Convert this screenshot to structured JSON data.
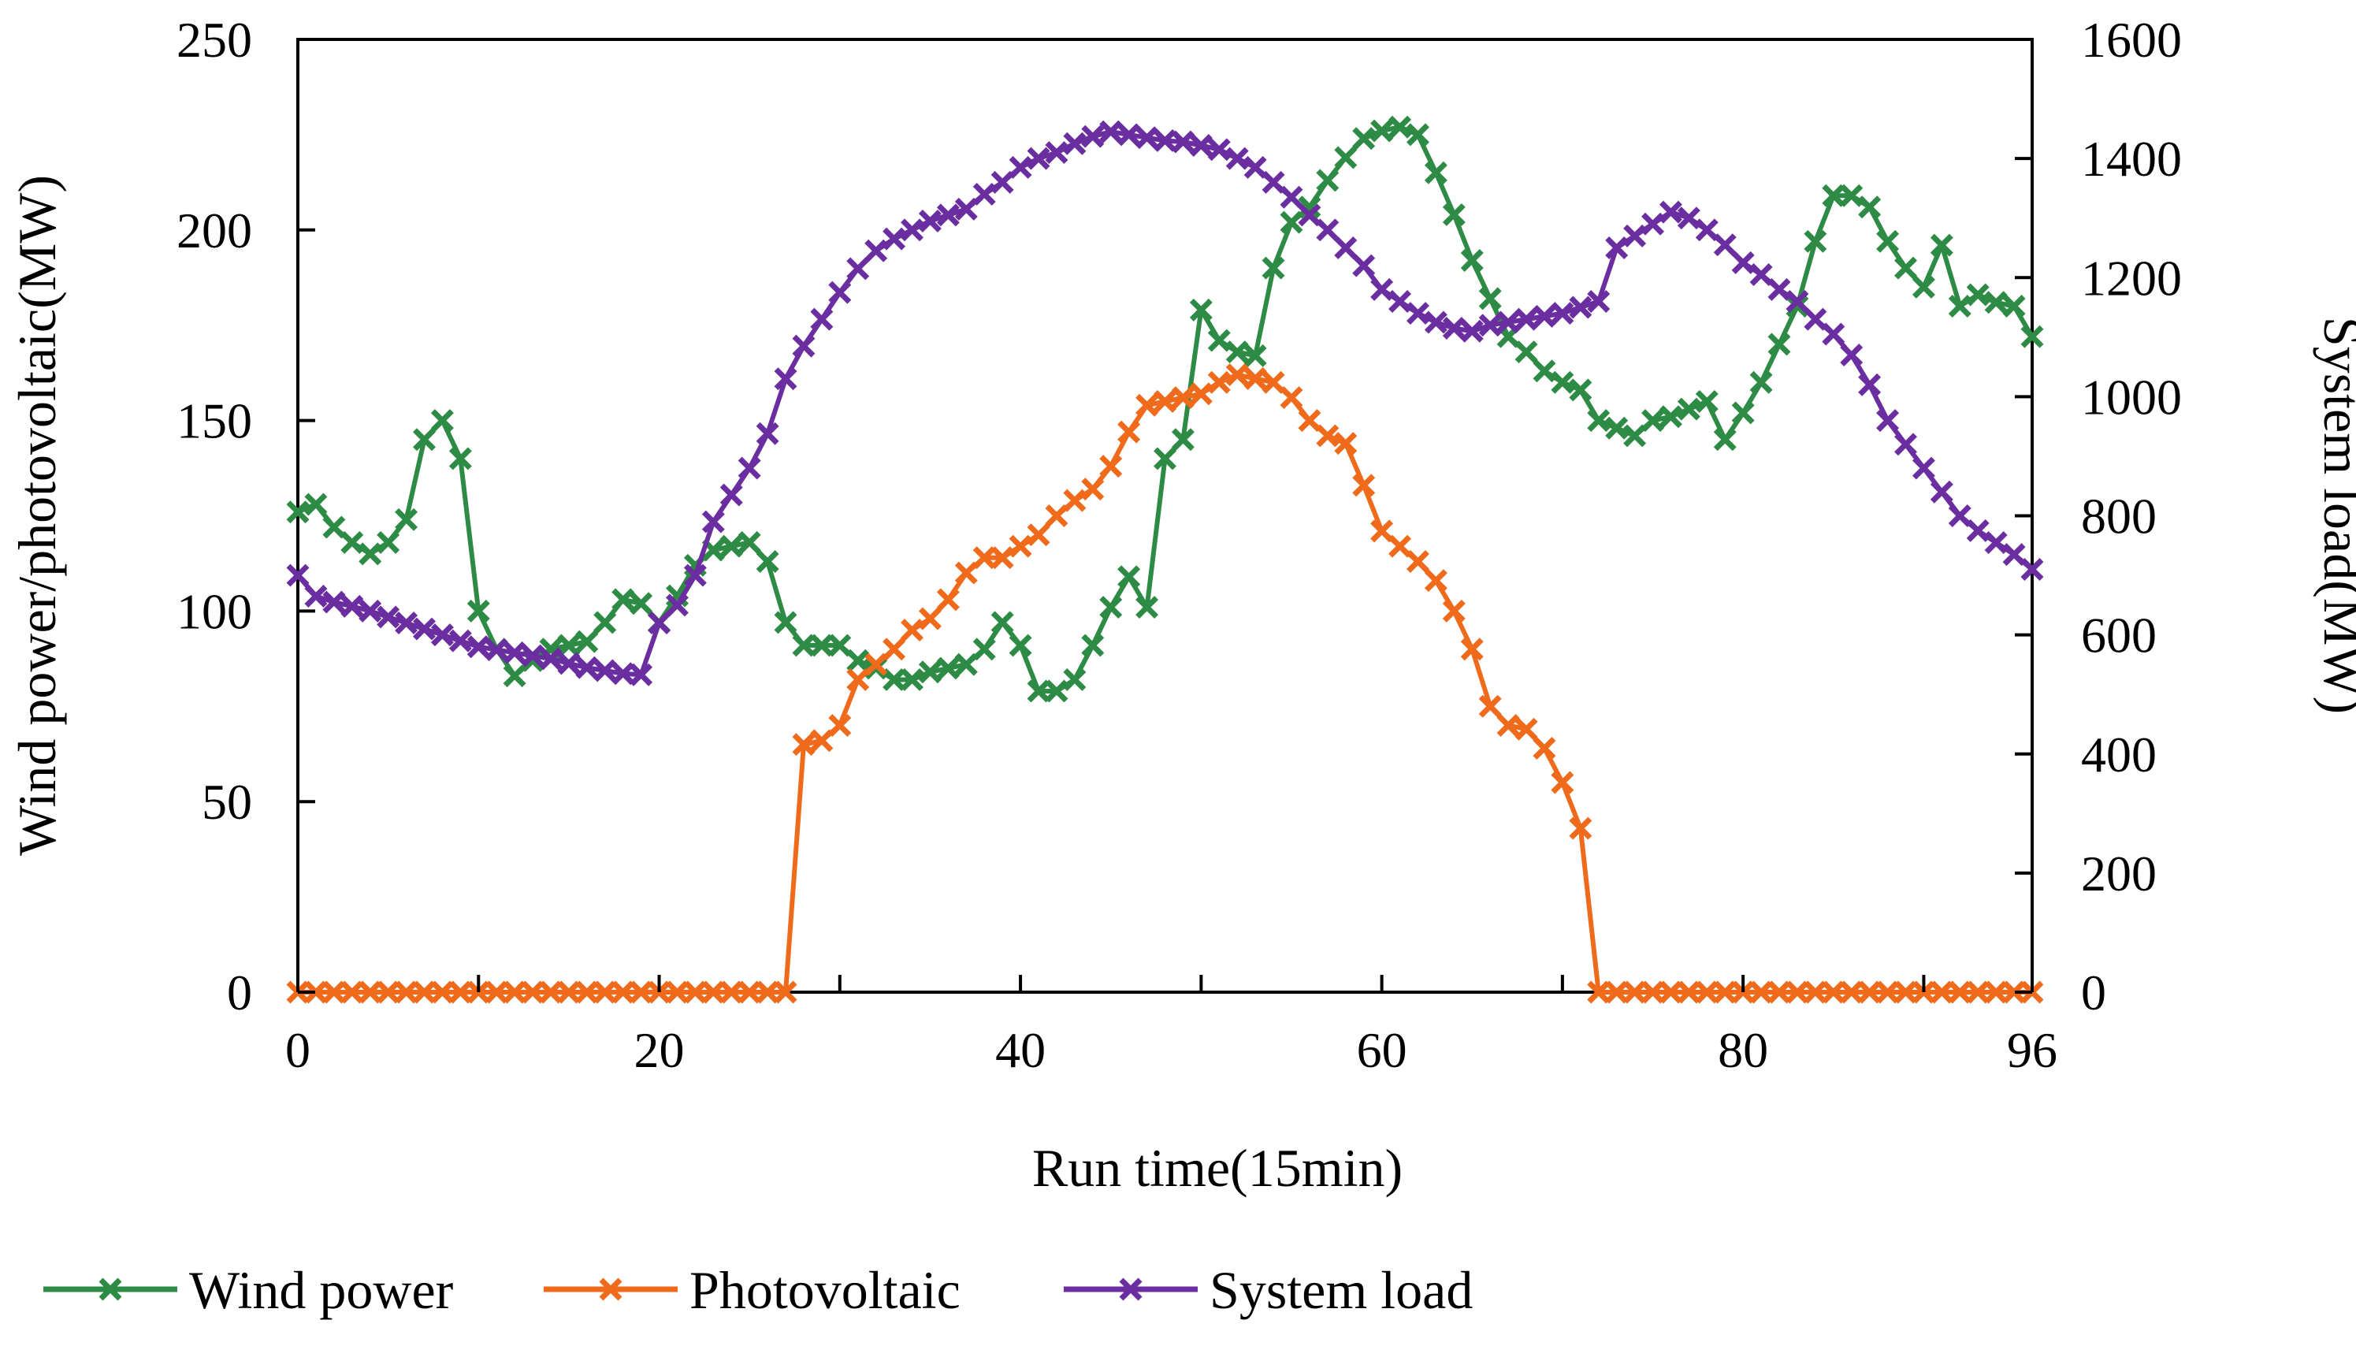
{
  "chart_data": {
    "type": "line",
    "title": "",
    "xlabel": "Run time(15min)",
    "ylabel": "Wind power/photovoltaic(MW)",
    "y2label": "System load(MW)",
    "xlim": [
      0,
      96
    ],
    "ylim": [
      0,
      250
    ],
    "y2lim": [
      0,
      1600
    ],
    "xticks": [
      0,
      20,
      40,
      60,
      80,
      96
    ],
    "yticks": [
      0,
      50,
      100,
      150,
      200,
      250
    ],
    "y2ticks": [
      0,
      200,
      400,
      600,
      800,
      1000,
      1200,
      1400,
      1600
    ],
    "grid": false,
    "legend_position": "bottom",
    "x": [
      0,
      1,
      2,
      3,
      4,
      5,
      6,
      7,
      8,
      9,
      10,
      11,
      12,
      13,
      14,
      15,
      16,
      17,
      18,
      19,
      20,
      21,
      22,
      23,
      24,
      25,
      26,
      27,
      28,
      29,
      30,
      31,
      32,
      33,
      34,
      35,
      36,
      37,
      38,
      39,
      40,
      41,
      42,
      43,
      44,
      45,
      46,
      47,
      48,
      49,
      50,
      51,
      52,
      53,
      54,
      55,
      56,
      57,
      58,
      59,
      60,
      61,
      62,
      63,
      64,
      65,
      66,
      67,
      68,
      69,
      70,
      71,
      72,
      73,
      74,
      75,
      76,
      77,
      78,
      79,
      80,
      81,
      82,
      83,
      84,
      85,
      86,
      87,
      88,
      89,
      90,
      91,
      92,
      93,
      94,
      95,
      96
    ],
    "series": [
      {
        "name": "Wind power",
        "axis": "left",
        "color": "#2e8b45",
        "values": [
          126,
          128,
          122,
          118,
          115,
          118,
          124,
          145,
          150,
          140,
          100,
          90,
          83,
          87,
          90,
          91,
          92,
          97,
          103,
          102,
          97,
          104,
          112,
          116,
          117,
          118,
          113,
          97,
          91,
          91,
          91,
          87,
          85,
          82,
          82,
          84,
          85,
          86,
          90,
          97,
          91,
          79,
          79,
          82,
          91,
          101,
          109,
          101,
          140,
          145,
          179,
          171,
          168,
          167,
          190,
          202,
          206,
          213,
          219,
          224,
          226,
          227,
          225,
          215,
          204,
          192,
          182,
          172,
          168,
          163,
          160,
          158,
          150,
          148,
          146,
          150,
          151,
          153,
          155,
          145,
          152,
          160,
          170,
          180,
          197,
          209,
          209,
          206,
          197,
          190,
          185,
          196,
          180,
          183,
          181,
          180,
          172
        ]
      },
      {
        "name": "Photovoltaic",
        "axis": "left",
        "color": "#ef6a1a",
        "values": [
          0,
          0,
          0,
          0,
          0,
          0,
          0,
          0,
          0,
          0,
          0,
          0,
          0,
          0,
          0,
          0,
          0,
          0,
          0,
          0,
          0,
          0,
          0,
          0,
          0,
          0,
          0,
          0,
          65,
          66,
          70,
          82,
          86,
          90,
          95,
          98,
          103,
          110,
          114,
          114,
          117,
          120,
          125,
          129,
          132,
          138,
          147,
          154,
          155,
          156,
          157,
          160,
          162,
          161,
          160,
          156,
          150,
          146,
          144,
          133,
          121,
          117,
          113,
          108,
          100,
          90,
          75,
          70,
          69,
          64,
          55,
          43,
          0,
          0,
          0,
          0,
          0,
          0,
          0,
          0,
          0,
          0,
          0,
          0,
          0,
          0,
          0,
          0,
          0,
          0,
          0,
          0,
          0,
          0,
          0,
          0,
          0
        ]
      },
      {
        "name": "System load",
        "axis": "right",
        "color": "#6a2ea0",
        "values": [
          700,
          665,
          655,
          648,
          640,
          630,
          620,
          610,
          600,
          590,
          580,
          575,
          570,
          565,
          560,
          552,
          545,
          540,
          535,
          533,
          620,
          650,
          700,
          790,
          835,
          880,
          938,
          1030,
          1085,
          1130,
          1175,
          1215,
          1245,
          1265,
          1280,
          1295,
          1305,
          1315,
          1340,
          1360,
          1385,
          1400,
          1410,
          1425,
          1437,
          1445,
          1440,
          1435,
          1430,
          1428,
          1422,
          1415,
          1400,
          1385,
          1360,
          1335,
          1305,
          1280,
          1250,
          1220,
          1180,
          1160,
          1140,
          1125,
          1115,
          1110,
          1120,
          1125,
          1130,
          1135,
          1140,
          1150,
          1160,
          1250,
          1270,
          1290,
          1310,
          1300,
          1280,
          1255,
          1225,
          1205,
          1180,
          1160,
          1130,
          1105,
          1070,
          1020,
          960,
          920,
          880,
          840,
          800,
          775,
          755,
          735,
          710
        ]
      }
    ]
  }
}
